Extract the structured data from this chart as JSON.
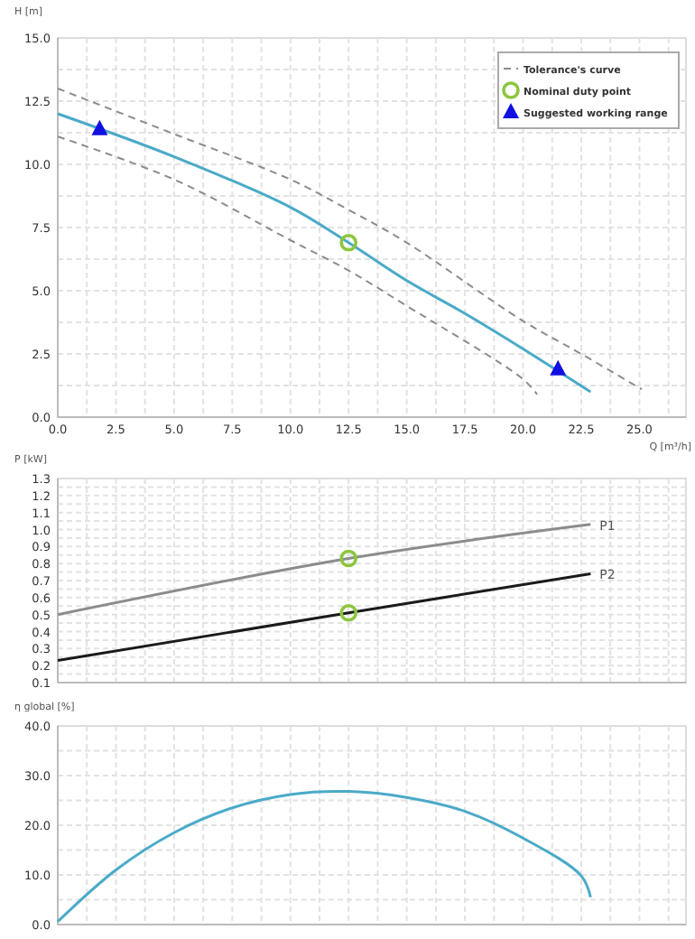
{
  "chart_data": [
    {
      "type": "line",
      "xlabel": "Q [m³/h]",
      "ylabel": "H [m]",
      "xlim": [
        0,
        27
      ],
      "ylim": [
        0,
        15
      ],
      "xticks": [
        {
          "value": 0,
          "label": "0.0"
        },
        {
          "value": 2.5,
          "label": "2.5"
        },
        {
          "value": 5,
          "label": "5.0"
        },
        {
          "value": 7.5,
          "label": "7.5"
        },
        {
          "value": 10,
          "label": "10.0"
        },
        {
          "value": 12.5,
          "label": "12.5"
        },
        {
          "value": 15,
          "label": "15.0"
        },
        {
          "value": 17.5,
          "label": "17.5"
        },
        {
          "value": 20,
          "label": "20.0"
        },
        {
          "value": 22.5,
          "label": "22.5"
        },
        {
          "value": 25,
          "label": "25.0"
        }
      ],
      "yticks": [
        {
          "value": 0,
          "label": "0.0"
        },
        {
          "value": 2.5,
          "label": "2.5"
        },
        {
          "value": 5,
          "label": "5.0"
        },
        {
          "value": 7.5,
          "label": "7.5"
        },
        {
          "value": 10,
          "label": "10.0"
        },
        {
          "value": 12.5,
          "label": "12.5"
        },
        {
          "value": 15,
          "label": "15.0"
        }
      ],
      "grid": true,
      "legend": "top right",
      "series": [
        {
          "name": "Tolerance's curve",
          "color": "#8c8c8c",
          "line_style": "dashed",
          "x": [
            0,
            5,
            10,
            12.5,
            15,
            20,
            22.5,
            25.1
          ],
          "values": [
            13.0,
            11.2,
            9.4,
            8.2,
            6.9,
            3.8,
            2.5,
            1.1
          ]
        },
        {
          "color": "#8c8c8c",
          "line_style": "dashed",
          "x": [
            0,
            5,
            10,
            12.5,
            15,
            20,
            20.6
          ],
          "values": [
            11.1,
            9.4,
            7.0,
            5.8,
            4.4,
            1.5,
            0.9
          ]
        },
        {
          "color": "#4aaac8",
          "line_style": "solid",
          "x": [
            0,
            5,
            10,
            12.5,
            15,
            17.5,
            20,
            22.9
          ],
          "values": [
            12.0,
            10.3,
            8.3,
            6.9,
            5.4,
            4.1,
            2.7,
            1.0
          ]
        },
        {
          "name": "Nominal duty point",
          "type": "scatter",
          "marker": "circle",
          "color": "#8cc63f",
          "x": [
            12.5
          ],
          "values": [
            6.9
          ]
        },
        {
          "name": "Suggested working range",
          "type": "scatter",
          "marker": "triangle",
          "color": "#1010e0",
          "x": [
            1.8,
            21.5
          ],
          "values": [
            11.4,
            1.9
          ]
        }
      ]
    },
    {
      "type": "line",
      "ylabel": "P [kW]",
      "xlim": [
        0,
        27
      ],
      "ylim": [
        0.1,
        1.3
      ],
      "tick_labels": "y",
      "xticks": [
        0,
        2.5,
        5,
        7.5,
        10,
        12.5,
        15,
        17.5,
        20,
        22.5,
        25
      ],
      "yticks": [
        0.1,
        0.2,
        0.3,
        0.4,
        0.5,
        0.6,
        0.7,
        0.8,
        0.9,
        {
          "value": 1,
          "label": "1.0"
        },
        1.1,
        1.2,
        1.3
      ],
      "grid": true,
      "series": [
        {
          "name": "P1",
          "color": "#8c8c8c",
          "line_style": "solid",
          "x": [
            0,
            12.5,
            22.9
          ],
          "values": [
            0.5,
            0.83,
            1.03
          ]
        },
        {
          "name": "P2",
          "color": "#1a1a1a",
          "line_style": "solid",
          "x": [
            0,
            12.5,
            22.9
          ],
          "values": [
            0.23,
            0.51,
            0.74
          ]
        },
        {
          "type": "scatter",
          "marker": "circle",
          "color": "#8cc63f",
          "x": [
            12.5,
            12.5
          ],
          "values": [
            0.83,
            0.51
          ]
        }
      ]
    },
    {
      "type": "line",
      "ylabel": "η global [%]",
      "xlim": [
        0,
        27
      ],
      "ylim": [
        0,
        40
      ],
      "tick_labels": "y",
      "xticks": [
        0,
        2.5,
        5,
        7.5,
        10,
        12.5,
        15,
        17.5,
        20,
        22.5,
        25
      ],
      "yticks": [
        {
          "value": 0,
          "label": "0.0"
        },
        {
          "value": 10,
          "label": "10.0"
        },
        {
          "value": 20,
          "label": "20.0"
        },
        {
          "value": 30,
          "label": "30.0"
        },
        {
          "value": 40,
          "label": "40.0"
        }
      ],
      "grid": true,
      "series": [
        {
          "color": "#4aaac8",
          "line_style": "solid",
          "x": [
            0,
            2.5,
            5,
            7.5,
            10,
            12.5,
            15,
            17.5,
            20,
            22.5,
            22.9
          ],
          "values": [
            0.6,
            11.0,
            18.5,
            23.5,
            26.2,
            26.8,
            25.6,
            22.8,
            17.4,
            9.8,
            5.5
          ]
        }
      ]
    }
  ]
}
